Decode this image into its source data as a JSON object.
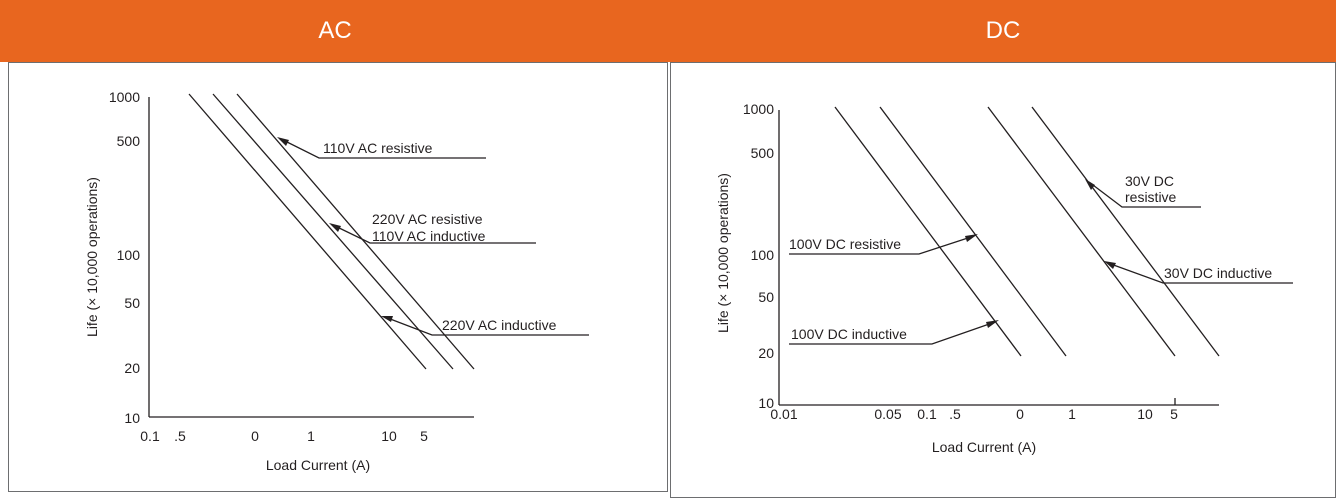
{
  "panels": [
    {
      "header": "AC"
    },
    {
      "header": "DC"
    }
  ],
  "colors": {
    "header_bg": "#e8661f",
    "header_text": "#ffffff",
    "line": "#231f20",
    "border": "#6d6e70"
  },
  "chart_data": [
    {
      "type": "line",
      "ylabel": "Life (× 10,000 operations)",
      "xlabel": "Load Current (A)",
      "y_ticks": [
        "1000",
        "500",
        "100",
        "50",
        "20",
        "10"
      ],
      "x_ticks": [
        "0.1",
        ".5",
        "0",
        "1",
        "10",
        "5"
      ],
      "ylim": [
        10,
        1000
      ],
      "y_scale": "log",
      "annotations": [
        "110V AC resistive",
        "220V AC resistive",
        "110V AC inductive",
        "220V AC inductive"
      ]
    },
    {
      "type": "line",
      "ylabel": "Life (× 10,000 operations)",
      "xlabel": "Load Current (A)",
      "y_ticks": [
        "1000",
        "500",
        "100",
        "50",
        "20",
        "10"
      ],
      "x_ticks": [
        "0.01",
        "0.05",
        "0.1",
        ".5",
        "0",
        "1",
        "10",
        "5"
      ],
      "ylim": [
        10,
        1000
      ],
      "y_scale": "log",
      "annotations": [
        "30V DC",
        "resistive",
        "100V DC resistive",
        "30V DC inductive",
        "100V DC inductive"
      ]
    }
  ]
}
